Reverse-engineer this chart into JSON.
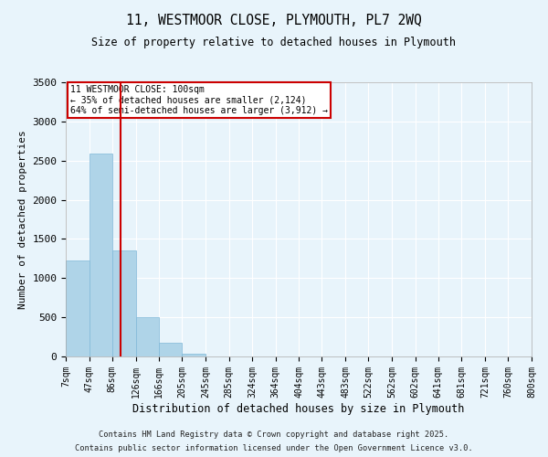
{
  "title1": "11, WESTMOOR CLOSE, PLYMOUTH, PL7 2WQ",
  "title2": "Size of property relative to detached houses in Plymouth",
  "xlabel": "Distribution of detached houses by size in Plymouth",
  "ylabel": "Number of detached properties",
  "footnote1": "Contains HM Land Registry data © Crown copyright and database right 2025.",
  "footnote2": "Contains public sector information licensed under the Open Government Licence v3.0.",
  "annotation_title": "11 WESTMOOR CLOSE: 100sqm",
  "annotation_line1": "← 35% of detached houses are smaller (2,124)",
  "annotation_line2": "64% of semi-detached houses are larger (3,912) →",
  "property_size": 100,
  "bar_edges": [
    7,
    47,
    86,
    126,
    166,
    205,
    245,
    285,
    324,
    364,
    404,
    443,
    483,
    522,
    562,
    602,
    641,
    681,
    721,
    760,
    800
  ],
  "bar_heights": [
    1230,
    2590,
    1350,
    500,
    175,
    30,
    5,
    2,
    1,
    1,
    0,
    0,
    0,
    0,
    0,
    0,
    0,
    0,
    0,
    0
  ],
  "bar_color": "#afd4e8",
  "bar_edgecolor": "#7fb8d8",
  "vline_color": "#cc0000",
  "annotation_box_color": "#cc0000",
  "background_color": "#e8f4fb",
  "grid_color": "#ffffff",
  "ylim": [
    0,
    3500
  ],
  "yticks": [
    0,
    500,
    1000,
    1500,
    2000,
    2500,
    3000,
    3500
  ]
}
